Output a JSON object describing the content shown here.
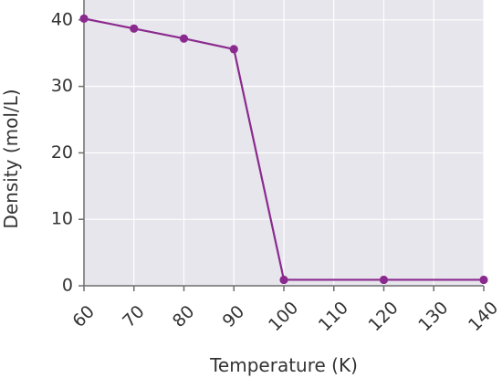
{
  "chart_data": {
    "type": "line",
    "title": "",
    "xlabel": "Temperature (K)",
    "ylabel": "Density (mol/L)",
    "x": [
      60,
      70,
      80,
      90,
      100,
      120,
      140
    ],
    "series": [
      {
        "values": [
          40.2,
          38.7,
          37.2,
          35.6,
          0.9,
          0.9,
          0.9
        ]
      }
    ],
    "x_ticks": [
      60,
      70,
      80,
      90,
      100,
      110,
      120,
      130,
      140
    ],
    "x_tick_labels": [
      "60",
      "70",
      "80",
      "90",
      "100",
      "110",
      "120",
      "130",
      "140"
    ],
    "y_ticks": [
      0,
      10,
      20,
      30,
      40
    ],
    "y_tick_labels": [
      "0",
      "10",
      "20",
      "30",
      "40"
    ],
    "xlim": [
      60,
      140
    ],
    "ylim": [
      0,
      43
    ],
    "grid": true,
    "colors": {
      "plot_background": "#e6e6ec",
      "grid": "#ffffff",
      "axis": "#6d6d6d",
      "series": "#8b2a8e"
    }
  }
}
